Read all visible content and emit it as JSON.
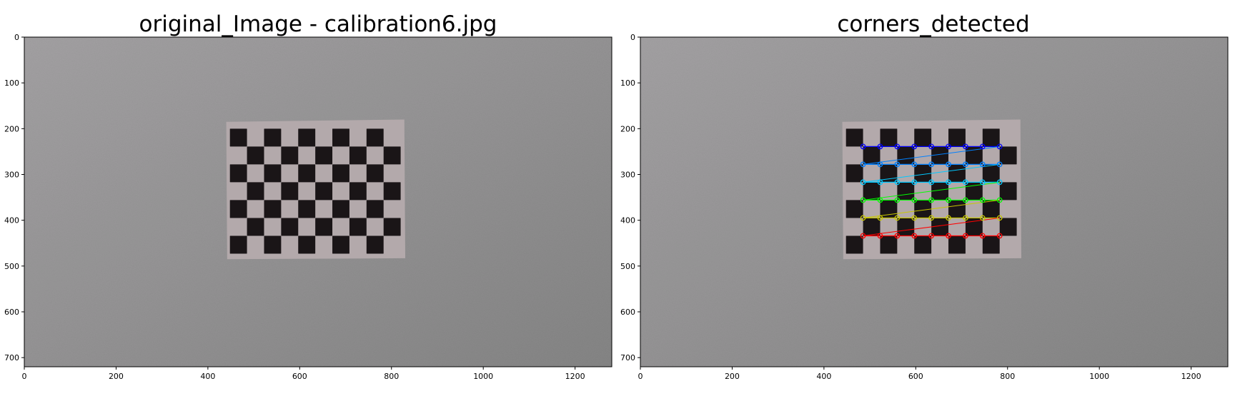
{
  "panels": [
    {
      "title": "original_Image - calibration6.jpg",
      "show_corners": false
    },
    {
      "title": "corners_detected",
      "show_corners": true
    }
  ],
  "image": {
    "width": 1280,
    "height": 720,
    "checkerboard": {
      "cols": 10,
      "rows": 7,
      "inner_cols": 9,
      "inner_rows": 6
    }
  },
  "axes": {
    "x_ticks": [
      0,
      200,
      400,
      600,
      800,
      1000,
      1200
    ],
    "y_ticks": [
      0,
      100,
      200,
      300,
      400,
      500,
      600,
      700
    ]
  },
  "colors": {
    "background": "#ffffff",
    "wall": "#8e8e8f",
    "paper": "#b3a9ab",
    "square": "#1a1517",
    "corner_rows": [
      "#0000ff",
      "#0080ff",
      "#00c8ff",
      "#00ff00",
      "#c8c800",
      "#ff0000"
    ]
  }
}
